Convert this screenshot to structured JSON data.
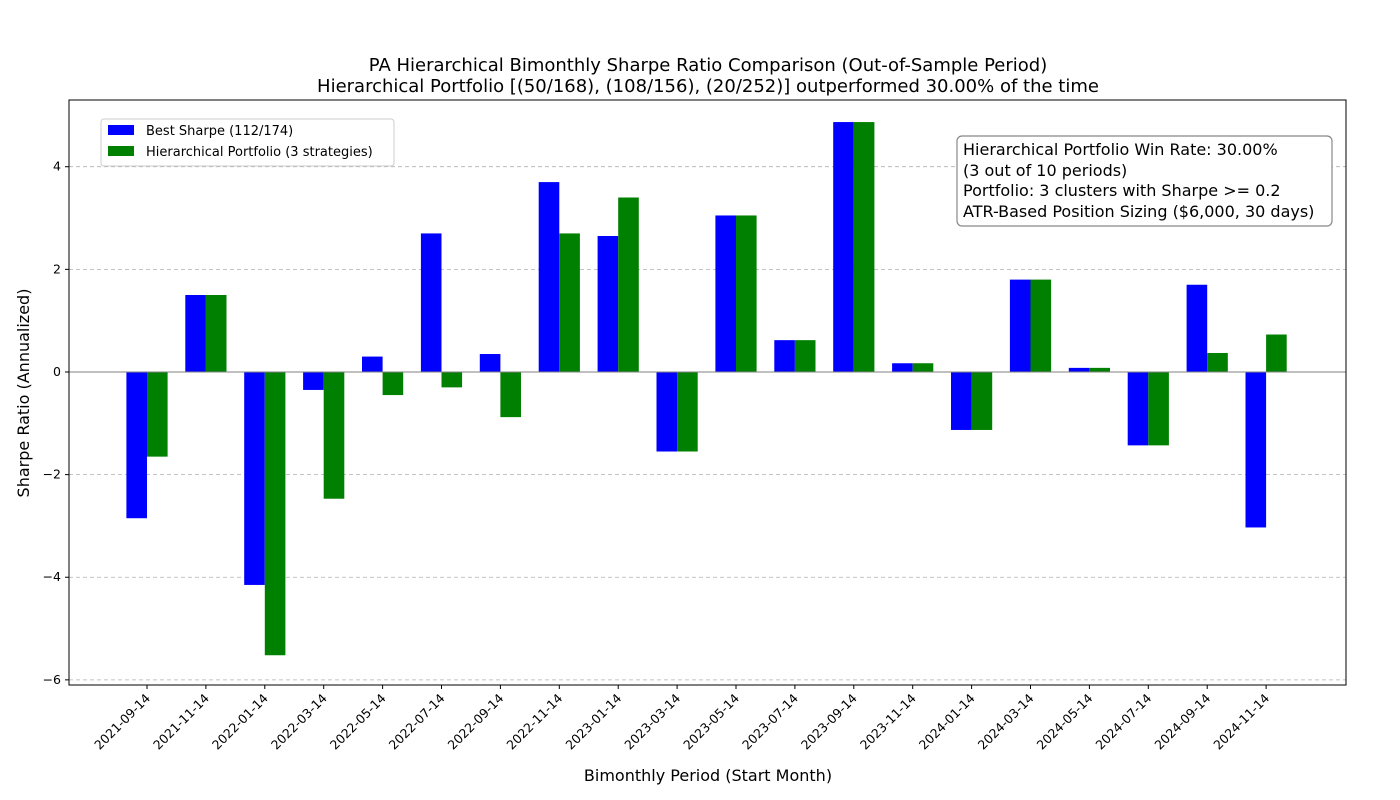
{
  "chart_data": {
    "type": "bar",
    "title": "PA Hierarchical Bimonthly Sharpe Ratio Comparison (Out-of-Sample Period)",
    "subtitle": "Hierarchical Portfolio [(50/168), (108/156), (20/252)] outperformed 30.00% of the time",
    "xlabel": "Bimonthly Period (Start Month)",
    "ylabel": "Sharpe Ratio (Annualized)",
    "ylim": [
      -6.1,
      5.3
    ],
    "yticks": [
      -6,
      -4,
      -2,
      0,
      2,
      4
    ],
    "ytick_labels": [
      "−6",
      "−4",
      "−2",
      "0",
      "2",
      "4"
    ],
    "grid": "y-dashed",
    "legend_position": "top-left",
    "categories": [
      "2021-09-14",
      "2021-11-14",
      "2022-01-14",
      "2022-03-14",
      "2022-05-14",
      "2022-07-14",
      "2022-09-14",
      "2022-11-14",
      "2023-01-14",
      "2023-03-14",
      "2023-05-14",
      "2023-07-14",
      "2023-09-14",
      "2023-11-14",
      "2024-01-14",
      "2024-03-14",
      "2024-05-14",
      "2024-07-14",
      "2024-09-14",
      "2024-11-14"
    ],
    "series": [
      {
        "name": "Best Sharpe (112/174)",
        "color": "#0000ff",
        "values": [
          -2.85,
          1.5,
          -4.15,
          -0.35,
          0.3,
          2.7,
          0.35,
          3.7,
          2.65,
          -1.55,
          3.05,
          0.62,
          4.87,
          0.17,
          -1.13,
          1.8,
          0.08,
          -1.43,
          1.7,
          -3.03
        ]
      },
      {
        "name": "Hierarchical Portfolio (3 strategies)",
        "color": "#008000",
        "values": [
          -1.65,
          1.5,
          -5.52,
          -2.47,
          -0.45,
          -0.3,
          -0.88,
          2.7,
          3.4,
          -1.55,
          3.05,
          0.62,
          4.87,
          0.17,
          -1.13,
          1.8,
          0.08,
          -1.43,
          0.37,
          0.73
        ]
      }
    ],
    "annotation": {
      "lines": [
        "Hierarchical Portfolio Win Rate: 30.00%",
        "(3 out of 10 periods)",
        "Portfolio: 3 clusters with Sharpe >= 0.2",
        "ATR-Based Position Sizing ($6,000, 30 days)"
      ],
      "position": "top-right"
    }
  }
}
